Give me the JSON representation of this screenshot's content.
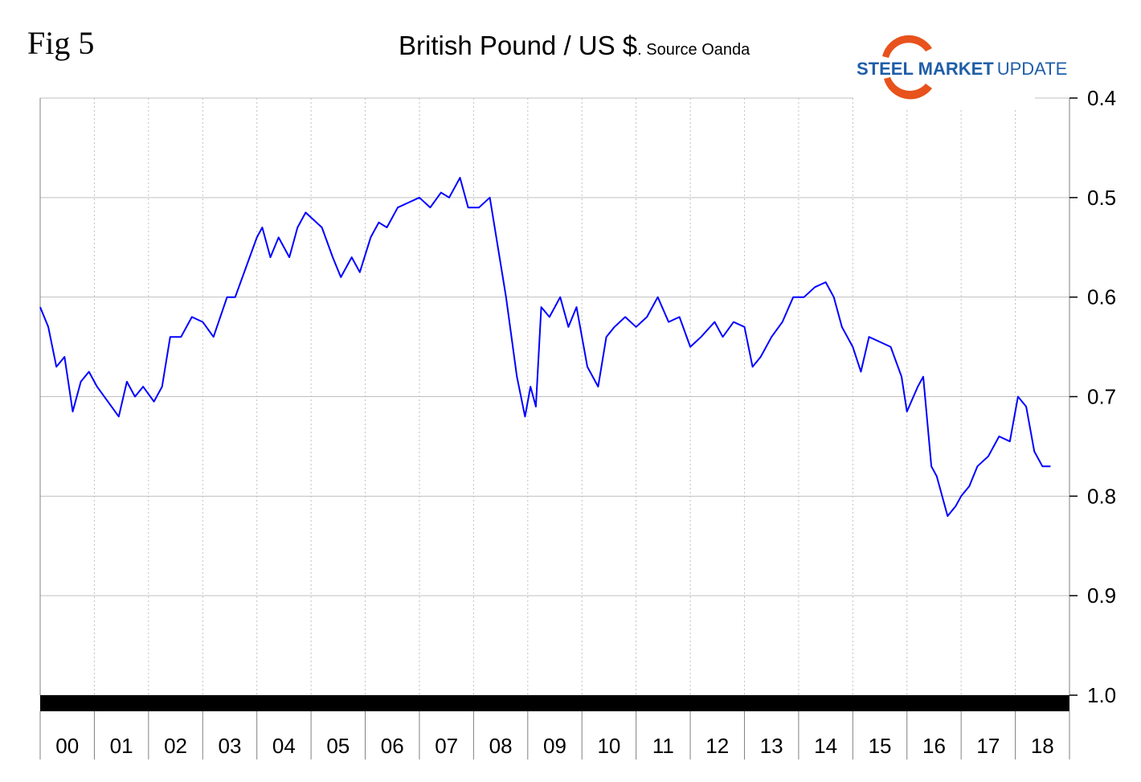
{
  "figure_label": "Fig 5",
  "logo": {
    "text_bold": "STEEL MARKET",
    "text_regular": "UPDATE",
    "swoosh_color": "#e8521c"
  },
  "colors": {
    "series": "#0000ff",
    "gridline": "#c0c0c0",
    "axis": "#808080",
    "band": "#000000"
  },
  "chart_data": {
    "type": "line",
    "title": "British Pound / US $",
    "subtitle": ". Source Oanda",
    "y_axis": {
      "side": "right",
      "inverted": true,
      "ylim": [
        0.4,
        1.0
      ],
      "ticks": [
        "0.4",
        "0.5",
        "0.6",
        "0.7",
        "0.8",
        "0.9",
        "1.0"
      ]
    },
    "x_axis": {
      "range": [
        2000,
        2019
      ],
      "categories": [
        "00",
        "01",
        "02",
        "03",
        "04",
        "05",
        "06",
        "07",
        "08",
        "09",
        "10",
        "11",
        "12",
        "13",
        "14",
        "15",
        "16",
        "17",
        "18"
      ]
    },
    "grid": true,
    "legend": "none",
    "series": [
      {
        "x": [
          2000.0,
          2000.15,
          2000.3,
          2000.45,
          2000.6,
          2000.75,
          2000.9,
          2001.05,
          2001.25,
          2001.45,
          2001.6,
          2001.75,
          2001.9,
          2002.1,
          2002.25,
          2002.4,
          2002.6,
          2002.8,
          2003.0,
          2003.2,
          2003.45,
          2003.6,
          2003.8,
          2004.0,
          2004.1,
          2004.25,
          2004.4,
          2004.6,
          2004.75,
          2004.9,
          2005.0,
          2005.2,
          2005.4,
          2005.55,
          2005.75,
          2005.9,
          2006.1,
          2006.25,
          2006.4,
          2006.6,
          2006.8,
          2007.0,
          2007.2,
          2007.4,
          2007.55,
          2007.75,
          2007.9,
          2008.1,
          2008.3,
          2008.45,
          2008.6,
          2008.8,
          2008.95,
          2009.05,
          2009.15,
          2009.25,
          2009.4,
          2009.6,
          2009.75,
          2009.9,
          2010.1,
          2010.3,
          2010.45,
          2010.6,
          2010.8,
          2011.0,
          2011.2,
          2011.4,
          2011.6,
          2011.8,
          2012.0,
          2012.2,
          2012.45,
          2012.6,
          2012.8,
          2013.0,
          2013.15,
          2013.3,
          2013.5,
          2013.7,
          2013.9,
          2014.1,
          2014.3,
          2014.5,
          2014.65,
          2014.8,
          2015.0,
          2015.15,
          2015.3,
          2015.5,
          2015.7,
          2015.9,
          2016.0,
          2016.2,
          2016.3,
          2016.45,
          2016.55,
          2016.75,
          2016.9,
          2017.0,
          2017.15,
          2017.3,
          2017.5,
          2017.7,
          2017.9,
          2018.05,
          2018.2,
          2018.35,
          2018.5,
          2018.65
        ],
        "y": [
          0.61,
          0.63,
          0.67,
          0.66,
          0.715,
          0.685,
          0.675,
          0.69,
          0.705,
          0.72,
          0.685,
          0.7,
          0.69,
          0.705,
          0.69,
          0.64,
          0.64,
          0.62,
          0.625,
          0.64,
          0.6,
          0.6,
          0.57,
          0.54,
          0.53,
          0.56,
          0.54,
          0.56,
          0.53,
          0.515,
          0.52,
          0.53,
          0.56,
          0.58,
          0.56,
          0.575,
          0.54,
          0.525,
          0.53,
          0.51,
          0.505,
          0.5,
          0.51,
          0.495,
          0.5,
          0.48,
          0.51,
          0.51,
          0.5,
          0.55,
          0.6,
          0.68,
          0.72,
          0.69,
          0.71,
          0.61,
          0.62,
          0.6,
          0.63,
          0.61,
          0.67,
          0.69,
          0.64,
          0.63,
          0.62,
          0.63,
          0.62,
          0.6,
          0.625,
          0.62,
          0.65,
          0.64,
          0.625,
          0.64,
          0.625,
          0.63,
          0.67,
          0.66,
          0.64,
          0.625,
          0.6,
          0.6,
          0.59,
          0.585,
          0.6,
          0.63,
          0.65,
          0.675,
          0.64,
          0.645,
          0.65,
          0.68,
          0.715,
          0.69,
          0.68,
          0.77,
          0.78,
          0.82,
          0.81,
          0.8,
          0.79,
          0.77,
          0.76,
          0.74,
          0.745,
          0.7,
          0.71,
          0.755,
          0.77,
          0.77
        ]
      }
    ]
  }
}
